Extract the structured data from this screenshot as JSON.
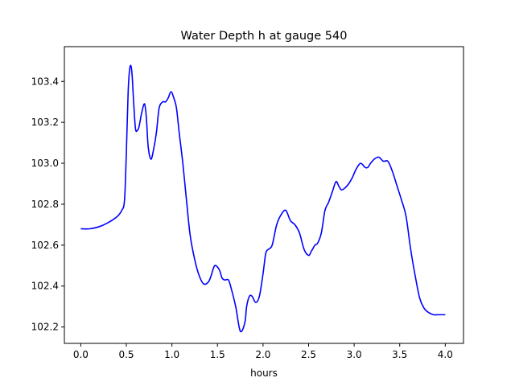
{
  "chart_data": {
    "type": "line",
    "title": "Water Depth h at gauge 540",
    "xlabel": "hours",
    "ylabel": "",
    "xlim": [
      -0.18,
      4.2
    ],
    "ylim": [
      102.12,
      103.57
    ],
    "xticks": [
      0.0,
      0.5,
      1.0,
      1.5,
      2.0,
      2.5,
      3.0,
      3.5,
      4.0
    ],
    "xtick_labels": [
      "0.0",
      "0.5",
      "1.0",
      "1.5",
      "2.0",
      "2.5",
      "3.0",
      "3.5",
      "4.0"
    ],
    "yticks": [
      102.2,
      102.4,
      102.6,
      102.8,
      103.0,
      103.2,
      103.4
    ],
    "ytick_labels": [
      "102.2",
      "102.4",
      "102.6",
      "102.8",
      "103.0",
      "103.2",
      "103.4"
    ],
    "grid": false,
    "series": [
      {
        "color": "#0000ff",
        "x": [
          0.0,
          0.1,
          0.2,
          0.3,
          0.4,
          0.45,
          0.48,
          0.5,
          0.52,
          0.54,
          0.56,
          0.58,
          0.6,
          0.62,
          0.64,
          0.67,
          0.7,
          0.72,
          0.74,
          0.77,
          0.8,
          0.83,
          0.86,
          0.9,
          0.93,
          0.96,
          0.99,
          1.02,
          1.05,
          1.08,
          1.12,
          1.16,
          1.2,
          1.25,
          1.3,
          1.35,
          1.4,
          1.43,
          1.47,
          1.52,
          1.55,
          1.58,
          1.62,
          1.65,
          1.7,
          1.75,
          1.8,
          1.82,
          1.85,
          1.88,
          1.92,
          1.96,
          2.0,
          2.03,
          2.06,
          2.1,
          2.15,
          2.2,
          2.25,
          2.3,
          2.35,
          2.4,
          2.45,
          2.5,
          2.53,
          2.57,
          2.6,
          2.64,
          2.68,
          2.72,
          2.76,
          2.8,
          2.83,
          2.86,
          2.9,
          2.94,
          2.98,
          3.02,
          3.07,
          3.12,
          3.15,
          3.18,
          3.22,
          3.27,
          3.32,
          3.37,
          3.42,
          3.47,
          3.52,
          3.57,
          3.62,
          3.67,
          3.72,
          3.77,
          3.82,
          3.87,
          3.92,
          3.97,
          4.0
        ],
        "y": [
          102.68,
          102.68,
          102.69,
          102.71,
          102.74,
          102.77,
          102.82,
          103.05,
          103.35,
          103.47,
          103.45,
          103.3,
          103.17,
          103.16,
          103.18,
          103.25,
          103.29,
          103.22,
          103.08,
          103.02,
          103.07,
          103.15,
          103.27,
          103.3,
          103.3,
          103.32,
          103.35,
          103.32,
          103.27,
          103.15,
          103.0,
          102.82,
          102.65,
          102.53,
          102.45,
          102.41,
          102.42,
          102.45,
          102.5,
          102.48,
          102.44,
          102.43,
          102.43,
          102.39,
          102.3,
          102.18,
          102.22,
          102.3,
          102.35,
          102.35,
          102.32,
          102.35,
          102.46,
          102.56,
          102.58,
          102.6,
          102.7,
          102.75,
          102.77,
          102.72,
          102.7,
          102.66,
          102.58,
          102.55,
          102.57,
          102.6,
          102.61,
          102.66,
          102.77,
          102.81,
          102.86,
          102.91,
          102.89,
          102.87,
          102.88,
          102.9,
          102.93,
          102.97,
          103.0,
          102.98,
          102.98,
          103.0,
          103.02,
          103.03,
          103.01,
          103.01,
          102.96,
          102.89,
          102.82,
          102.74,
          102.58,
          102.45,
          102.34,
          102.29,
          102.27,
          102.26,
          102.26,
          102.26,
          102.26
        ]
      }
    ]
  }
}
